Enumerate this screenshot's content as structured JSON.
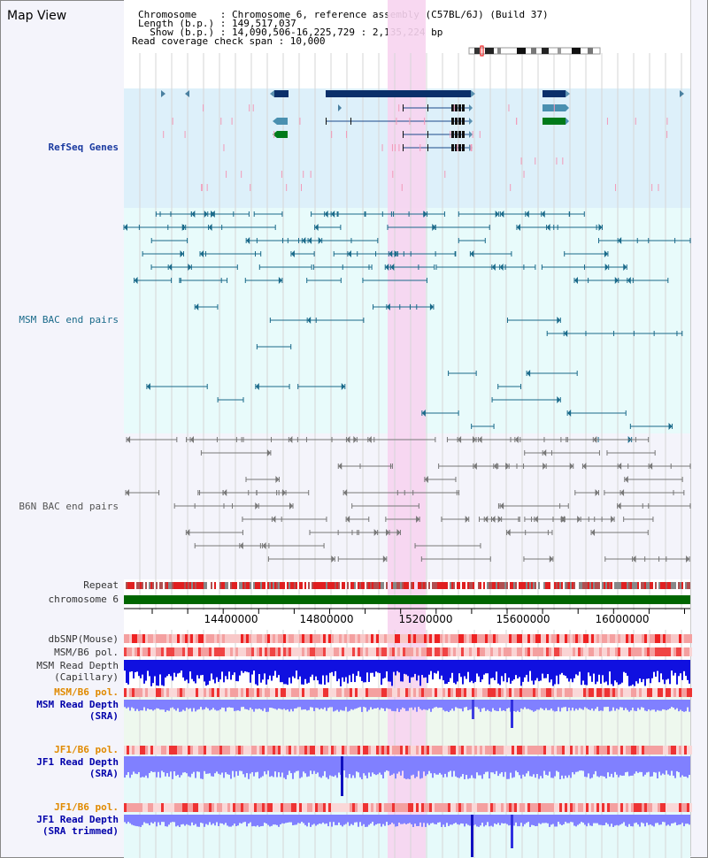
{
  "page_title": "Map View",
  "info": {
    "chromosome_line": "Chromosome    : Chromosome 6, reference assembly (C57BL/6J) (Build 37)",
    "length_line": "Length (b.p.) : 149,517,037",
    "show_line": "  Show (b.p.) : 14,090,506-16,225,729 : 2,135,224 bp",
    "coverage_line": "Read coverage check span : 10,000"
  },
  "tracks": {
    "refseq": "RefSeq Genes",
    "msm_bac": "MSM BAC end pairs",
    "b6n_bac": "B6N BAC end pairs",
    "repeat": "Repeat",
    "chromosome": "chromosome 6",
    "dbsnp": "dbSNP(Mouse)",
    "msm_b6_pol_1": "MSM/B6 pol.",
    "msm_depth_cap_1": "MSM Read Depth",
    "msm_depth_cap_2": "(Capillary)",
    "msm_b6_pol_2": "MSM/B6 pol.",
    "msm_depth_sra_1": "MSM Read Depth",
    "msm_depth_sra_2": "(SRA)",
    "jf1_b6_pol_1": "JF1/B6 pol.",
    "jf1_depth_sra_1": "JF1 Read Depth",
    "jf1_depth_sra_2": "(SRA)",
    "jf1_b6_pol_2": "JF1/B6 pol.",
    "jf1_depth_trim_1": "JF1 Read Depth",
    "jf1_depth_trim_2": "(SRA trimmed)"
  },
  "axis_ticks": [
    "14400000",
    "14800000",
    "15200000",
    "15600000",
    "16000000"
  ],
  "colors": {
    "refseq_bg": "#ddf0fa",
    "msm_bg": "#e8fbfb",
    "b6n_bg": "#f4f4fb",
    "highlight": "#f7d4f0",
    "navy_gene": "#0a2f6a",
    "teal_pair": "#1a6a8a",
    "grey_pair": "#777777",
    "chromosome_bar": "#006600",
    "depth_blue": "#1010e0",
    "depth_light": "#8080ff"
  }
}
